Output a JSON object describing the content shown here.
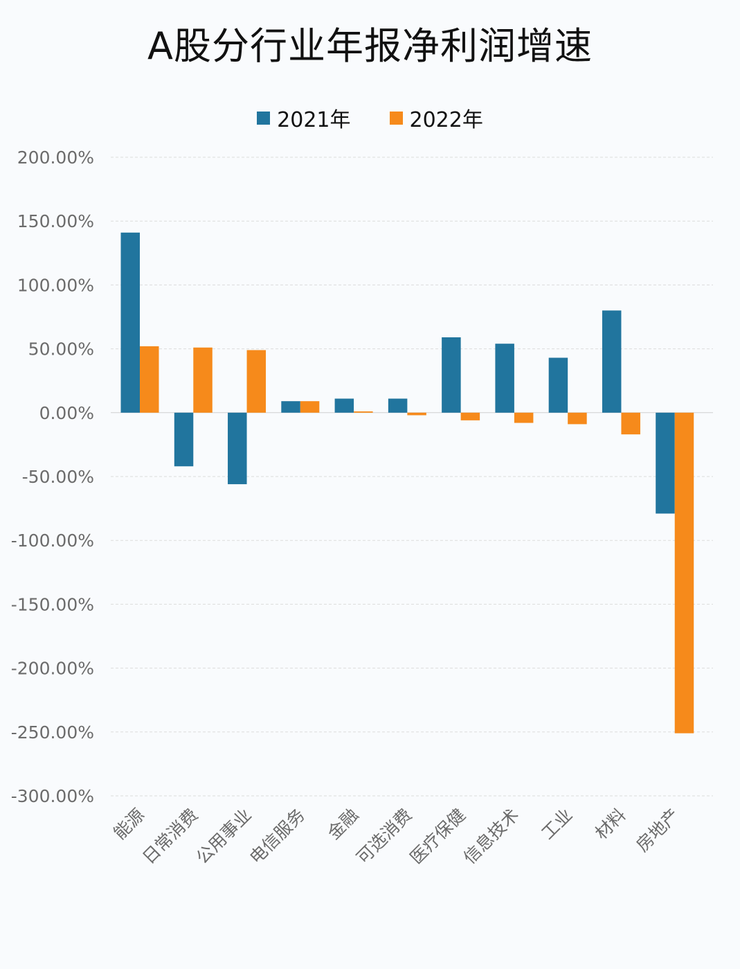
{
  "chart_data": {
    "type": "bar",
    "title": "A股分行业年报净利润增速",
    "categories": [
      "能源",
      "日常消费",
      "公用事业",
      "电信服务",
      "金融",
      "可选消费",
      "医疗保健",
      "信息技术",
      "工业",
      "材料",
      "房地产"
    ],
    "series": [
      {
        "name": "2021年",
        "color": "#21759e",
        "values": [
          141,
          -42,
          -56,
          9,
          11,
          11,
          59,
          54,
          43,
          80,
          -79
        ]
      },
      {
        "name": "2022年",
        "color": "#f68a1b",
        "values": [
          52,
          51,
          49,
          9,
          1,
          -2,
          -6,
          -8,
          -9,
          -17,
          -251
        ]
      }
    ],
    "ylim": [
      -300,
      200
    ],
    "yticks": [
      200,
      150,
      100,
      50,
      0,
      -50,
      -100,
      -150,
      -200,
      -250,
      -300
    ],
    "ytick_labels": [
      "200.00%",
      "150.00%",
      "100.00%",
      "50.00%",
      "0.00%",
      "-50.00%",
      "-100.00%",
      "-150.00%",
      "-200.00%",
      "-250.00%",
      "-300.00%"
    ],
    "xlabel": "",
    "ylabel": "",
    "grid": true,
    "legend_position": "top"
  }
}
